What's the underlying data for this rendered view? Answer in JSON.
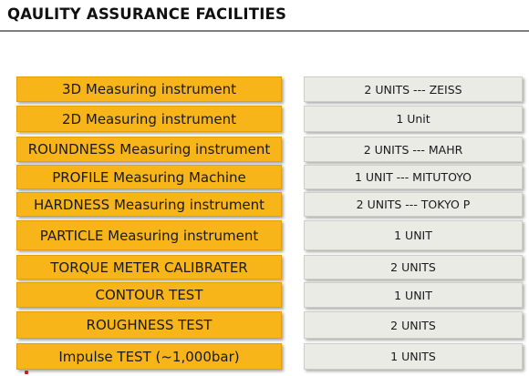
{
  "title": "QAULITY ASSURANCE FACILITIES",
  "facilities": [
    {
      "name": "3D Measuring instrument",
      "units": "2 UNITS --- ZEISS"
    },
    {
      "name": "2D Measuring instrument",
      "units": "1 Unit"
    },
    {
      "name": "ROUNDNESS Measuring instrument",
      "units": "2 UNITS --- MAHR"
    },
    {
      "name": "PROFILE Measuring Machine",
      "units": "1 UNIT --- MITUTOYO"
    },
    {
      "name": "HARDNESS Measuring instrument",
      "units": "2 UNITS --- TOKYO P"
    },
    {
      "name": "PARTICLE Measuring instrument",
      "units": "1 UNIT"
    },
    {
      "name": "TORQUE METER CALIBRATER",
      "units": "2 UNITS"
    },
    {
      "name": "CONTOUR TEST",
      "units": "1 UNIT"
    },
    {
      "name": "ROUGHNESS TEST",
      "units": "2 UNITS"
    },
    {
      "name": "Impulse TEST (~1,000bar)",
      "units": "1 UNITS"
    }
  ],
  "colors": {
    "label_fill": "#f7b519",
    "value_fill": "#ebebe6",
    "rule": "#7d7d7d"
  }
}
